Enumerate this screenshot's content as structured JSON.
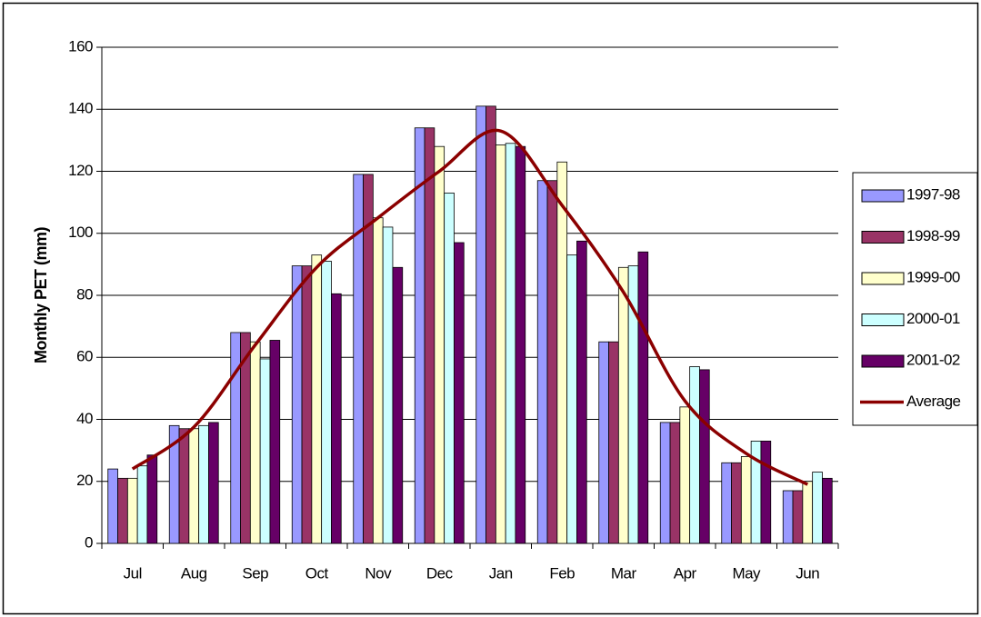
{
  "chart_data": {
    "type": "bar",
    "y_label": "Monthly PET (mm)",
    "categories": [
      "Jul",
      "Aug",
      "Sep",
      "Oct",
      "Nov",
      "Dec",
      "Jan",
      "Feb",
      "Mar",
      "Apr",
      "May",
      "Jun"
    ],
    "series": [
      {
        "name": "1997-98",
        "color": "#9999ff",
        "values": [
          24,
          38,
          68,
          89.5,
          119,
          134,
          141,
          117,
          65,
          39,
          26,
          17
        ]
      },
      {
        "name": "1998-99",
        "color": "#993366",
        "values": [
          21,
          37,
          68,
          89.5,
          119,
          134,
          141,
          117,
          65,
          39,
          26,
          17
        ]
      },
      {
        "name": "1999-00",
        "color": "#ffffcc",
        "values": [
          21,
          37,
          65,
          93,
          105,
          128,
          128.5,
          123,
          89,
          44,
          28,
          20
        ]
      },
      {
        "name": "2000-01",
        "color": "#ccffff",
        "values": [
          25,
          38,
          59.5,
          91,
          102,
          113,
          129,
          93,
          89.5,
          57,
          33,
          23
        ]
      },
      {
        "name": "2001-02",
        "color": "#660066",
        "values": [
          28.5,
          39,
          65.5,
          80.5,
          89,
          97,
          128,
          97.5,
          94,
          56,
          33,
          21
        ]
      },
      {
        "name": "Average",
        "color": "#8b0000",
        "type": "line",
        "values": [
          24,
          37.5,
          64,
          89,
          105,
          120,
          133,
          109,
          81,
          46,
          29,
          19
        ]
      }
    ],
    "ylim": [
      0,
      160
    ],
    "yticks": [
      0,
      20,
      40,
      60,
      80,
      100,
      120,
      140,
      160
    ],
    "grid": true,
    "legend": "right"
  }
}
